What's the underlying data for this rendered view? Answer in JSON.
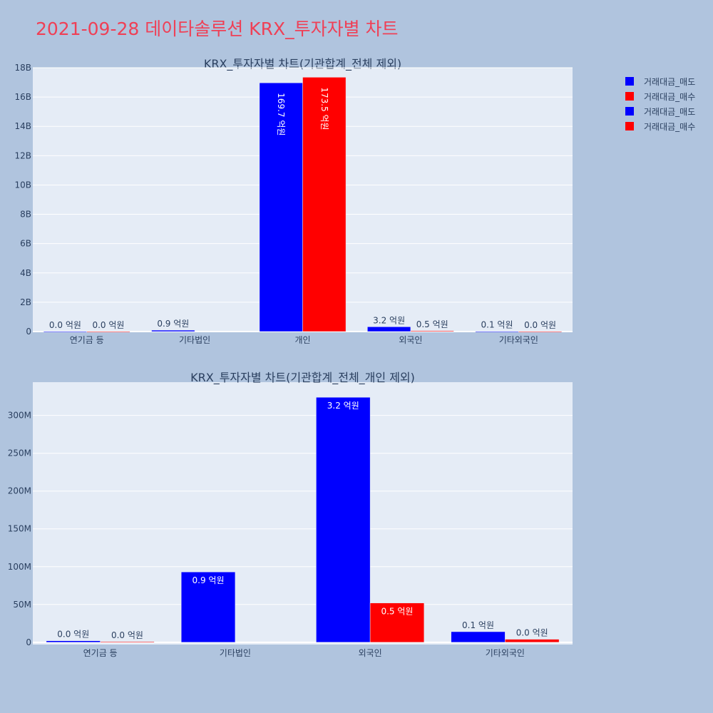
{
  "page_title": "2021-09-28 데이타솔루션 KRX_투자자별 차트",
  "colors": {
    "page_bg": "#b0c4de",
    "plot_bg": "#e5ecf6",
    "title": "#ef4056",
    "text": "#2a3f5f",
    "sell": "#0000ff",
    "buy": "#ff0000"
  },
  "legend": {
    "placement": "top-right",
    "items": [
      {
        "name": "거래대금_매도",
        "color": "#0000ff"
      },
      {
        "name": "거래대금_매수",
        "color": "#ff0000"
      },
      {
        "name": "거래대금_매도",
        "color": "#0000ff"
      },
      {
        "name": "거래대금_매수",
        "color": "#ff0000"
      }
    ]
  },
  "chart_data": [
    {
      "type": "bar",
      "title": "KRX_투자자별 차트(기관합계_전체 제외)",
      "categories": [
        "연기금 등",
        "기타법인",
        "개인",
        "외국인",
        "기타외국인"
      ],
      "ylim": [
        0,
        18000000000
      ],
      "yticks": [
        0,
        2000000000,
        4000000000,
        6000000000,
        8000000000,
        10000000000,
        12000000000,
        14000000000,
        16000000000,
        18000000000
      ],
      "ytick_labels": [
        "0",
        "2B",
        "4B",
        "6B",
        "8B",
        "10B",
        "12B",
        "14B",
        "16B",
        "18B"
      ],
      "grid": true,
      "series": [
        {
          "name": "거래대금_매도",
          "color": "#0000ff",
          "values": [
            2000000,
            93000000,
            16970000000,
            324000000,
            14000000
          ],
          "labels": [
            "0.0 억원",
            "0.9 억원",
            "169.7 억원",
            "3.2 억원",
            "0.1 억원"
          ]
        },
        {
          "name": "거래대금_매수",
          "color": "#ff0000",
          "values": [
            1000000,
            0,
            17350000000,
            52000000,
            4000000
          ],
          "labels": [
            "0.0 억원",
            "",
            "173.5 억원",
            "0.5 억원",
            "0.0 억원"
          ]
        }
      ]
    },
    {
      "type": "bar",
      "title": "KRX_투자자별 차트(기관합계_전체_개인 제외)",
      "categories": [
        "연기금 등",
        "기타법인",
        "외국인",
        "기타외국인"
      ],
      "ylim": [
        -3000000,
        344000000
      ],
      "yticks": [
        0,
        50000000,
        100000000,
        150000000,
        200000000,
        250000000,
        300000000
      ],
      "ytick_labels": [
        "0",
        "50M",
        "100M",
        "150M",
        "200M",
        "250M",
        "300M"
      ],
      "grid": true,
      "series": [
        {
          "name": "거래대금_매도",
          "color": "#0000ff",
          "values": [
            2000000,
            93000000,
            324000000,
            14000000
          ],
          "labels": [
            "0.0 억원",
            "0.9 억원",
            "3.2 억원",
            "0.1 억원"
          ]
        },
        {
          "name": "거래대금_매수",
          "color": "#ff0000",
          "values": [
            1000000,
            0,
            52000000,
            4000000
          ],
          "labels": [
            "0.0 억원",
            "",
            "0.5 억원",
            "0.0 억원"
          ]
        }
      ]
    }
  ]
}
